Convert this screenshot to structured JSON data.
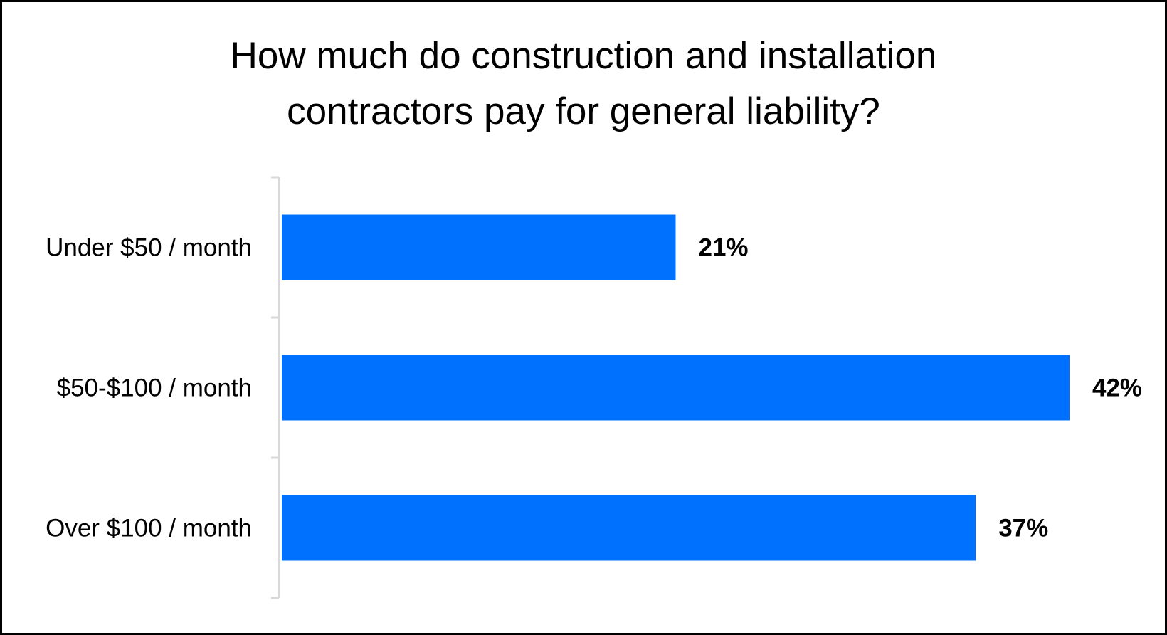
{
  "chart_data": {
    "type": "bar",
    "orientation": "horizontal",
    "title_lines": [
      "How much do construction and installation",
      "contractors pay for general liability?"
    ],
    "categories": [
      "Under $50 / month",
      "$50-$100 / month",
      "Over $100 / month"
    ],
    "values": [
      21,
      42,
      37
    ],
    "data_labels": [
      "21%",
      "42%",
      "37%"
    ],
    "xlim": [
      0,
      42
    ],
    "grid": false,
    "legend": "none",
    "bar_color": "#0070FF"
  }
}
